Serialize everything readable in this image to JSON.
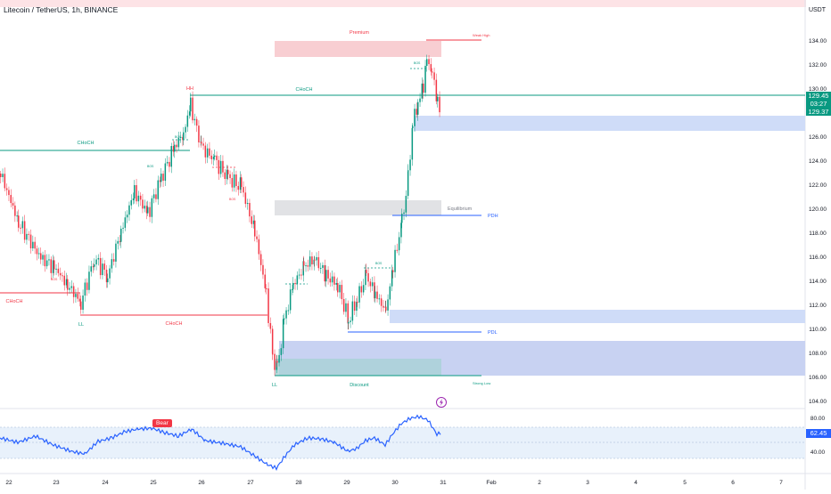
{
  "header": {
    "title": "Litecoin / TetherUS, 1h, BINANCE",
    "currency": "USDT"
  },
  "price_axis": {
    "ticks": [
      "134.00",
      "132.00",
      "130.00",
      "128.00",
      "126.00",
      "124.00",
      "122.00",
      "120.00",
      "118.00",
      "116.00",
      "114.00",
      "112.00",
      "110.00",
      "108.00",
      "106.00",
      "104.00"
    ],
    "last_price": "129.45",
    "countdown": "03:27",
    "lower_tag": "129.37"
  },
  "time_axis": {
    "ticks": [
      "22",
      "23",
      "24",
      "25",
      "26",
      "27",
      "28",
      "29",
      "30",
      "31",
      "Feb",
      "2",
      "3",
      "4",
      "5",
      "6",
      "7"
    ]
  },
  "annotations": {
    "premium": "Premium",
    "weak_high": "Weak High",
    "hh": "HH",
    "choch_top": "CHoCH",
    "choch_left": "CHoCH",
    "choch_left_low": "CHoCH",
    "choch_mid": "CHoCH",
    "ll_left": "LL",
    "ll_bottom": "LL",
    "discount": "Discount",
    "equilibrium": "Equilibrium",
    "pdh": "PDH",
    "pdl": "PDL",
    "strong_low": "Strong Low",
    "bos": "BOS"
  },
  "rsi": {
    "ticks": [
      "80.00",
      "40.00"
    ],
    "value": "62.45",
    "badge": "Bear"
  },
  "colors": {
    "bull": "#089981",
    "bear": "#f23645",
    "accent": "#2962ff"
  }
}
